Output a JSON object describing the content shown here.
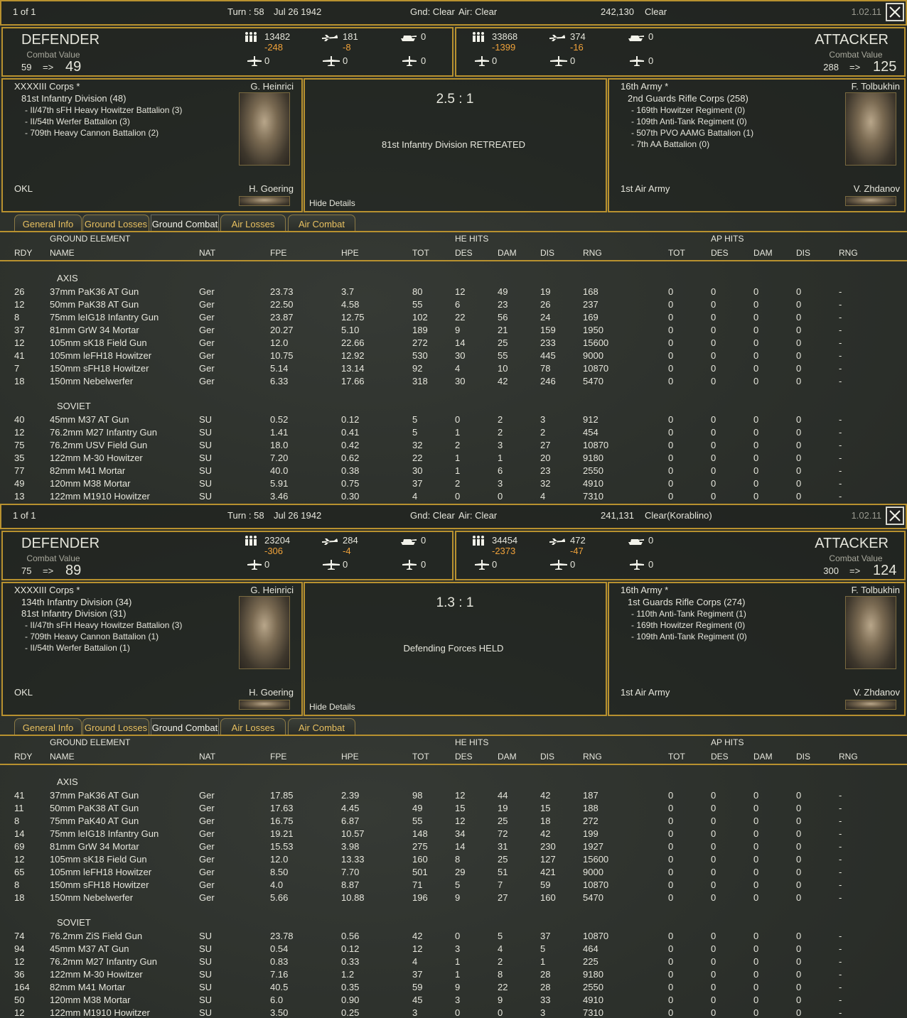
{
  "panels": [
    {
      "topbar": {
        "page": "1 of 1",
        "turn": "Turn : 58",
        "date": "Jul 26 1942",
        "ground": "Gnd: Clear",
        "air": "Air: Clear",
        "hex": "242,130",
        "terrain": "Clear",
        "version": "1.02.11"
      },
      "defender": {
        "title": "DEFENDER",
        "cv_label": "Combat Value",
        "cv_from": "59",
        "arrow": "=>",
        "cv_to": "49",
        "men": "13482",
        "men_loss": "-248",
        "aircraft": "181",
        "aircraft_loss": "-8",
        "afv": "0",
        "fighters": "0",
        "bombers": "0",
        "recon": "0"
      },
      "attacker": {
        "title": "ATTACKER",
        "cv_label": "Combat Value",
        "cv_from": "288",
        "arrow": "=>",
        "cv_to": "125",
        "men": "33868",
        "men_loss": "-1399",
        "aircraft": "374",
        "aircraft_loss": "-16",
        "afv": "0",
        "fighters": "0",
        "bombers": "0",
        "recon": "0"
      },
      "left": {
        "hq": "XXXXIII Corps *",
        "commander": "G. Heinrici",
        "units": [
          "81st Infantry Division (48)",
          "- II/47th sFH Heavy Howitzer Battalion (3)",
          "- II/54th Werfer Battalion (3)",
          "- 709th Heavy Cannon Battalion (2)"
        ],
        "air_hq": "OKL",
        "air_commander": "H. Goering"
      },
      "center": {
        "odds": "2.5 : 1",
        "result": "81st Infantry Division RETREATED",
        "hide": "Hide Details"
      },
      "right": {
        "hq": "16th Army *",
        "commander": "F. Tolbukhin",
        "units": [
          "2nd Guards Rifle Corps (258)",
          "- 169th Howitzer Regiment (0)",
          "- 109th Anti-Tank Regiment (0)",
          "- 507th PVO AAMG Battalion (1)",
          "- 7th AA Battalion (0)"
        ],
        "air_hq": "1st Air Army",
        "air_commander": "V. Zhdanov"
      },
      "tabs": [
        "General Info",
        "Ground Losses",
        "Ground Combat",
        "Air Losses",
        "Air Combat"
      ],
      "header": {
        "groups": [
          "GROUND ELEMENT",
          "HE HITS",
          "AP HITS"
        ],
        "columns": [
          "RDY",
          "NAME",
          "NAT",
          "FPE",
          "HPE",
          "TOT",
          "DES",
          "DAM",
          "DIS",
          "RNG",
          "TOT",
          "DES",
          "DAM",
          "DIS",
          "RNG"
        ]
      },
      "sections": [
        {
          "label": "AXIS",
          "rows": [
            [
              "26",
              "37mm PaK36 AT Gun",
              "Ger",
              "23.73",
              "3.7",
              "80",
              "12",
              "49",
              "19",
              "168",
              "0",
              "0",
              "0",
              "0",
              "-"
            ],
            [
              "12",
              "50mm PaK38 AT Gun",
              "Ger",
              "22.50",
              "4.58",
              "55",
              "6",
              "23",
              "26",
              "237",
              "0",
              "0",
              "0",
              "0",
              "-"
            ],
            [
              "8",
              "75mm leIG18 Infantry Gun",
              "Ger",
              "23.87",
              "12.75",
              "102",
              "22",
              "56",
              "24",
              "169",
              "0",
              "0",
              "0",
              "0",
              "-"
            ],
            [
              "37",
              "81mm GrW 34 Mortar",
              "Ger",
              "20.27",
              "5.10",
              "189",
              "9",
              "21",
              "159",
              "1950",
              "0",
              "0",
              "0",
              "0",
              "-"
            ],
            [
              "12",
              "105mm sK18 Field Gun",
              "Ger",
              "12.0",
              "22.66",
              "272",
              "14",
              "25",
              "233",
              "15600",
              "0",
              "0",
              "0",
              "0",
              "-"
            ],
            [
              "41",
              "105mm leFH18 Howitzer",
              "Ger",
              "10.75",
              "12.92",
              "530",
              "30",
              "55",
              "445",
              "9000",
              "0",
              "0",
              "0",
              "0",
              "-"
            ],
            [
              "7",
              "150mm sFH18 Howitzer",
              "Ger",
              "5.14",
              "13.14",
              "92",
              "4",
              "10",
              "78",
              "10870",
              "0",
              "0",
              "0",
              "0",
              "-"
            ],
            [
              "18",
              "150mm Nebelwerfer",
              "Ger",
              "6.33",
              "17.66",
              "318",
              "30",
              "42",
              "246",
              "5470",
              "0",
              "0",
              "0",
              "0",
              "-"
            ]
          ]
        },
        {
          "label": "SOVIET",
          "rows": [
            [
              "40",
              "45mm M37 AT Gun",
              "SU",
              "0.52",
              "0.12",
              "5",
              "0",
              "2",
              "3",
              "912",
              "0",
              "0",
              "0",
              "0",
              "-"
            ],
            [
              "12",
              "76.2mm M27 Infantry Gun",
              "SU",
              "1.41",
              "0.41",
              "5",
              "1",
              "2",
              "2",
              "454",
              "0",
              "0",
              "0",
              "0",
              "-"
            ],
            [
              "75",
              "76.2mm USV Field Gun",
              "SU",
              "18.0",
              "0.42",
              "32",
              "2",
              "3",
              "27",
              "10870",
              "0",
              "0",
              "0",
              "0",
              "-"
            ],
            [
              "35",
              "122mm M-30 Howitzer",
              "SU",
              "7.20",
              "0.62",
              "22",
              "1",
              "1",
              "20",
              "9180",
              "0",
              "0",
              "0",
              "0",
              "-"
            ],
            [
              "77",
              "82mm M41 Mortar",
              "SU",
              "40.0",
              "0.38",
              "30",
              "1",
              "6",
              "23",
              "2550",
              "0",
              "0",
              "0",
              "0",
              "-"
            ],
            [
              "49",
              "120mm M38 Mortar",
              "SU",
              "5.91",
              "0.75",
              "37",
              "2",
              "3",
              "32",
              "4910",
              "0",
              "0",
              "0",
              "0",
              "-"
            ],
            [
              "13",
              "122mm M1910 Howitzer",
              "SU",
              "3.46",
              "0.30",
              "4",
              "0",
              "0",
              "4",
              "7310",
              "0",
              "0",
              "0",
              "0",
              "-"
            ]
          ]
        }
      ]
    },
    {
      "topbar": {
        "page": "1 of 1",
        "turn": "Turn : 58",
        "date": "Jul 26 1942",
        "ground": "Gnd: Clear",
        "air": "Air: Clear",
        "hex": "241,131",
        "terrain": "Clear(Korablino)",
        "version": "1.02.11"
      },
      "defender": {
        "title": "DEFENDER",
        "cv_label": "Combat Value",
        "cv_from": "75",
        "arrow": "=>",
        "cv_to": "89",
        "men": "23204",
        "men_loss": "-306",
        "aircraft": "284",
        "aircraft_loss": "-4",
        "afv": "0",
        "fighters": "0",
        "bombers": "0",
        "recon": "0"
      },
      "attacker": {
        "title": "ATTACKER",
        "cv_label": "Combat Value",
        "cv_from": "300",
        "arrow": "=>",
        "cv_to": "124",
        "men": "34454",
        "men_loss": "-2373",
        "aircraft": "472",
        "aircraft_loss": "-47",
        "afv": "0",
        "fighters": "0",
        "bombers": "0",
        "recon": "0"
      },
      "left": {
        "hq": "XXXXIII Corps *",
        "commander": "G. Heinrici",
        "units": [
          "134th Infantry Division (34)",
          "81st Infantry Division (31)",
          "- II/47th sFH Heavy Howitzer Battalion (3)",
          "- 709th Heavy Cannon Battalion (1)",
          "- II/54th Werfer Battalion (1)"
        ],
        "air_hq": "OKL",
        "air_commander": "H. Goering"
      },
      "center": {
        "odds": "1.3 : 1",
        "result": "Defending Forces HELD",
        "hide": "Hide Details"
      },
      "right": {
        "hq": "16th Army *",
        "commander": "F. Tolbukhin",
        "units": [
          "1st Guards Rifle Corps (274)",
          "- 110th Anti-Tank Regiment (1)",
          "- 169th Howitzer Regiment (0)",
          "- 109th Anti-Tank Regiment (0)"
        ],
        "air_hq": "1st Air Army",
        "air_commander": "V. Zhdanov"
      },
      "tabs": [
        "General Info",
        "Ground Losses",
        "Ground Combat",
        "Air Losses",
        "Air Combat"
      ],
      "header": {
        "groups": [
          "GROUND ELEMENT",
          "HE HITS",
          "AP HITS"
        ],
        "columns": [
          "RDY",
          "NAME",
          "NAT",
          "FPE",
          "HPE",
          "TOT",
          "DES",
          "DAM",
          "DIS",
          "RNG",
          "TOT",
          "DES",
          "DAM",
          "DIS",
          "RNG"
        ]
      },
      "sections": [
        {
          "label": "AXIS",
          "rows": [
            [
              "41",
              "37mm PaK36 AT Gun",
              "Ger",
              "17.85",
              "2.39",
              "98",
              "12",
              "44",
              "42",
              "187",
              "0",
              "0",
              "0",
              "0",
              "-"
            ],
            [
              "11",
              "50mm PaK38 AT Gun",
              "Ger",
              "17.63",
              "4.45",
              "49",
              "15",
              "19",
              "15",
              "188",
              "0",
              "0",
              "0",
              "0",
              "-"
            ],
            [
              "8",
              "75mm PaK40 AT Gun",
              "Ger",
              "16.75",
              "6.87",
              "55",
              "12",
              "25",
              "18",
              "272",
              "0",
              "0",
              "0",
              "0",
              "-"
            ],
            [
              "14",
              "75mm leIG18 Infantry Gun",
              "Ger",
              "19.21",
              "10.57",
              "148",
              "34",
              "72",
              "42",
              "199",
              "0",
              "0",
              "0",
              "0",
              "-"
            ],
            [
              "69",
              "81mm GrW 34 Mortar",
              "Ger",
              "15.53",
              "3.98",
              "275",
              "14",
              "31",
              "230",
              "1927",
              "0",
              "0",
              "0",
              "0",
              "-"
            ],
            [
              "12",
              "105mm sK18 Field Gun",
              "Ger",
              "12.0",
              "13.33",
              "160",
              "8",
              "25",
              "127",
              "15600",
              "0",
              "0",
              "0",
              "0",
              "-"
            ],
            [
              "65",
              "105mm leFH18 Howitzer",
              "Ger",
              "8.50",
              "7.70",
              "501",
              "29",
              "51",
              "421",
              "9000",
              "0",
              "0",
              "0",
              "0",
              "-"
            ],
            [
              "8",
              "150mm sFH18 Howitzer",
              "Ger",
              "4.0",
              "8.87",
              "71",
              "5",
              "7",
              "59",
              "10870",
              "0",
              "0",
              "0",
              "0",
              "-"
            ],
            [
              "18",
              "150mm Nebelwerfer",
              "Ger",
              "5.66",
              "10.88",
              "196",
              "9",
              "27",
              "160",
              "5470",
              "0",
              "0",
              "0",
              "0",
              "-"
            ]
          ]
        },
        {
          "label": "SOVIET",
          "rows": [
            [
              "74",
              "76.2mm ZiS Field Gun",
              "SU",
              "23.78",
              "0.56",
              "42",
              "0",
              "5",
              "37",
              "10870",
              "0",
              "0",
              "0",
              "0",
              "-"
            ],
            [
              "94",
              "45mm M37 AT Gun",
              "SU",
              "0.54",
              "0.12",
              "12",
              "3",
              "4",
              "5",
              "464",
              "0",
              "0",
              "0",
              "0",
              "-"
            ],
            [
              "12",
              "76.2mm M27 Infantry Gun",
              "SU",
              "0.83",
              "0.33",
              "4",
              "1",
              "2",
              "1",
              "225",
              "0",
              "0",
              "0",
              "0",
              "-"
            ],
            [
              "36",
              "122mm M-30 Howitzer",
              "SU",
              "7.16",
              "1.2",
              "37",
              "1",
              "8",
              "28",
              "9180",
              "0",
              "0",
              "0",
              "0",
              "-"
            ],
            [
              "164",
              "82mm M41 Mortar",
              "SU",
              "40.5",
              "0.35",
              "59",
              "9",
              "22",
              "28",
              "2550",
              "0",
              "0",
              "0",
              "0",
              "-"
            ],
            [
              "50",
              "120mm M38 Mortar",
              "SU",
              "6.0",
              "0.90",
              "45",
              "3",
              "9",
              "33",
              "4910",
              "0",
              "0",
              "0",
              "0",
              "-"
            ],
            [
              "12",
              "122mm M1910 Howitzer",
              "SU",
              "3.50",
              "0.25",
              "3",
              "0",
              "0",
              "3",
              "7310",
              "0",
              "0",
              "0",
              "0",
              "-"
            ]
          ]
        }
      ]
    }
  ]
}
